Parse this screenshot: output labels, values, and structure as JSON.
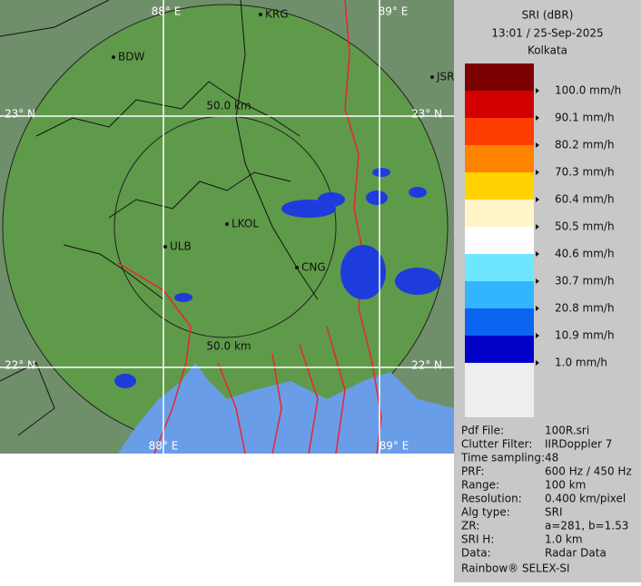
{
  "header": {
    "title": "SRI (dBR)",
    "datetime": "13:01 / 25-Sep-2025",
    "site": "Kolkata"
  },
  "map": {
    "grid_labels": [
      "88° E",
      "89° E",
      "23° N",
      "22° N",
      "88° E",
      "89° E",
      "23° N",
      "22° N"
    ],
    "range_labels": [
      "50.0 km",
      "50.0 km"
    ],
    "places": [
      "KRG",
      "BDW",
      "JSR",
      "LKOL",
      "ULB",
      "CNG"
    ]
  },
  "legend": [
    {
      "label": "100.0 mm/h",
      "color": "#7d0000"
    },
    {
      "label": "90.1 mm/h",
      "color": "#d20000"
    },
    {
      "label": "80.2 mm/h",
      "color": "#ff3c00"
    },
    {
      "label": "70.3 mm/h",
      "color": "#ff8200"
    },
    {
      "label": "60.4 mm/h",
      "color": "#ffd200"
    },
    {
      "label": "50.5 mm/h",
      "color": "#fff5c8"
    },
    {
      "label": "40.6 mm/h",
      "color": "#ffffff"
    },
    {
      "label": "30.7 mm/h",
      "color": "#6ee6ff"
    },
    {
      "label": "20.8 mm/h",
      "color": "#32b4ff"
    },
    {
      "label": "10.9 mm/h",
      "color": "#0a64f0"
    },
    {
      "label": "1.0 mm/h",
      "color": "#0000c8"
    }
  ],
  "info": [
    [
      "Pdf File:",
      "100R.sri"
    ],
    [
      "Clutter Filter:",
      "IIRDoppler 7"
    ],
    [
      "Time sampling:",
      "48"
    ],
    [
      "PRF:",
      "600 Hz / 450 Hz"
    ],
    [
      "Range:",
      "100 km"
    ],
    [
      "Resolution:",
      "0.400 km/pixel"
    ],
    [
      "Alg type:",
      "SRI"
    ],
    [
      "ZR:",
      "a=281, b=1.53"
    ],
    [
      "SRI H:",
      "1.0 km"
    ],
    [
      "Data:",
      "Radar Data"
    ]
  ],
  "footer": "Rainbow® SELEX-SI"
}
